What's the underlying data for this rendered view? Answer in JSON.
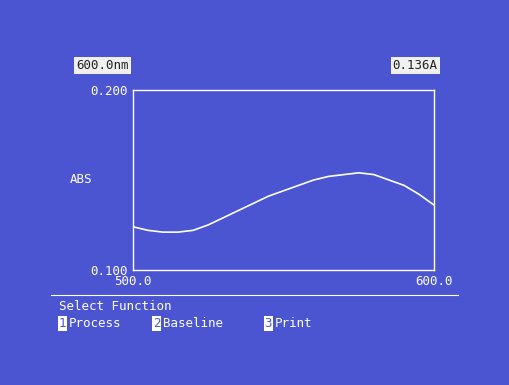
{
  "chart_data": {
    "type": "line",
    "x": [
      500,
      505,
      510,
      515,
      520,
      525,
      530,
      535,
      540,
      545,
      550,
      555,
      560,
      565,
      570,
      575,
      580,
      585,
      590,
      595,
      600
    ],
    "values": [
      0.124,
      0.122,
      0.121,
      0.121,
      0.122,
      0.125,
      0.129,
      0.133,
      0.137,
      0.141,
      0.144,
      0.147,
      0.15,
      0.152,
      0.153,
      0.154,
      0.153,
      0.15,
      0.147,
      0.142,
      0.136
    ],
    "color": "#ffffff",
    "y_label": "ABS",
    "xlim": [
      500,
      600
    ],
    "xticks": [
      {
        "value": 500,
        "label": "500.0"
      },
      {
        "value": 600,
        "label": "600.0"
      }
    ],
    "ylim": [
      0.1,
      0.2
    ],
    "yticks": [
      {
        "value": 0.1,
        "label": "0.100"
      },
      {
        "value": 0.2,
        "label": "0.200"
      }
    ],
    "grid": false
  },
  "status": {
    "wavelength": "600.0nm",
    "absorbance": "0.136A"
  },
  "menu": {
    "prompt": "Select Function",
    "options": [
      {
        "key": "1",
        "label": "Process"
      },
      {
        "key": "2",
        "label": "Baseline"
      },
      {
        "key": "3",
        "label": "Print"
      }
    ]
  }
}
